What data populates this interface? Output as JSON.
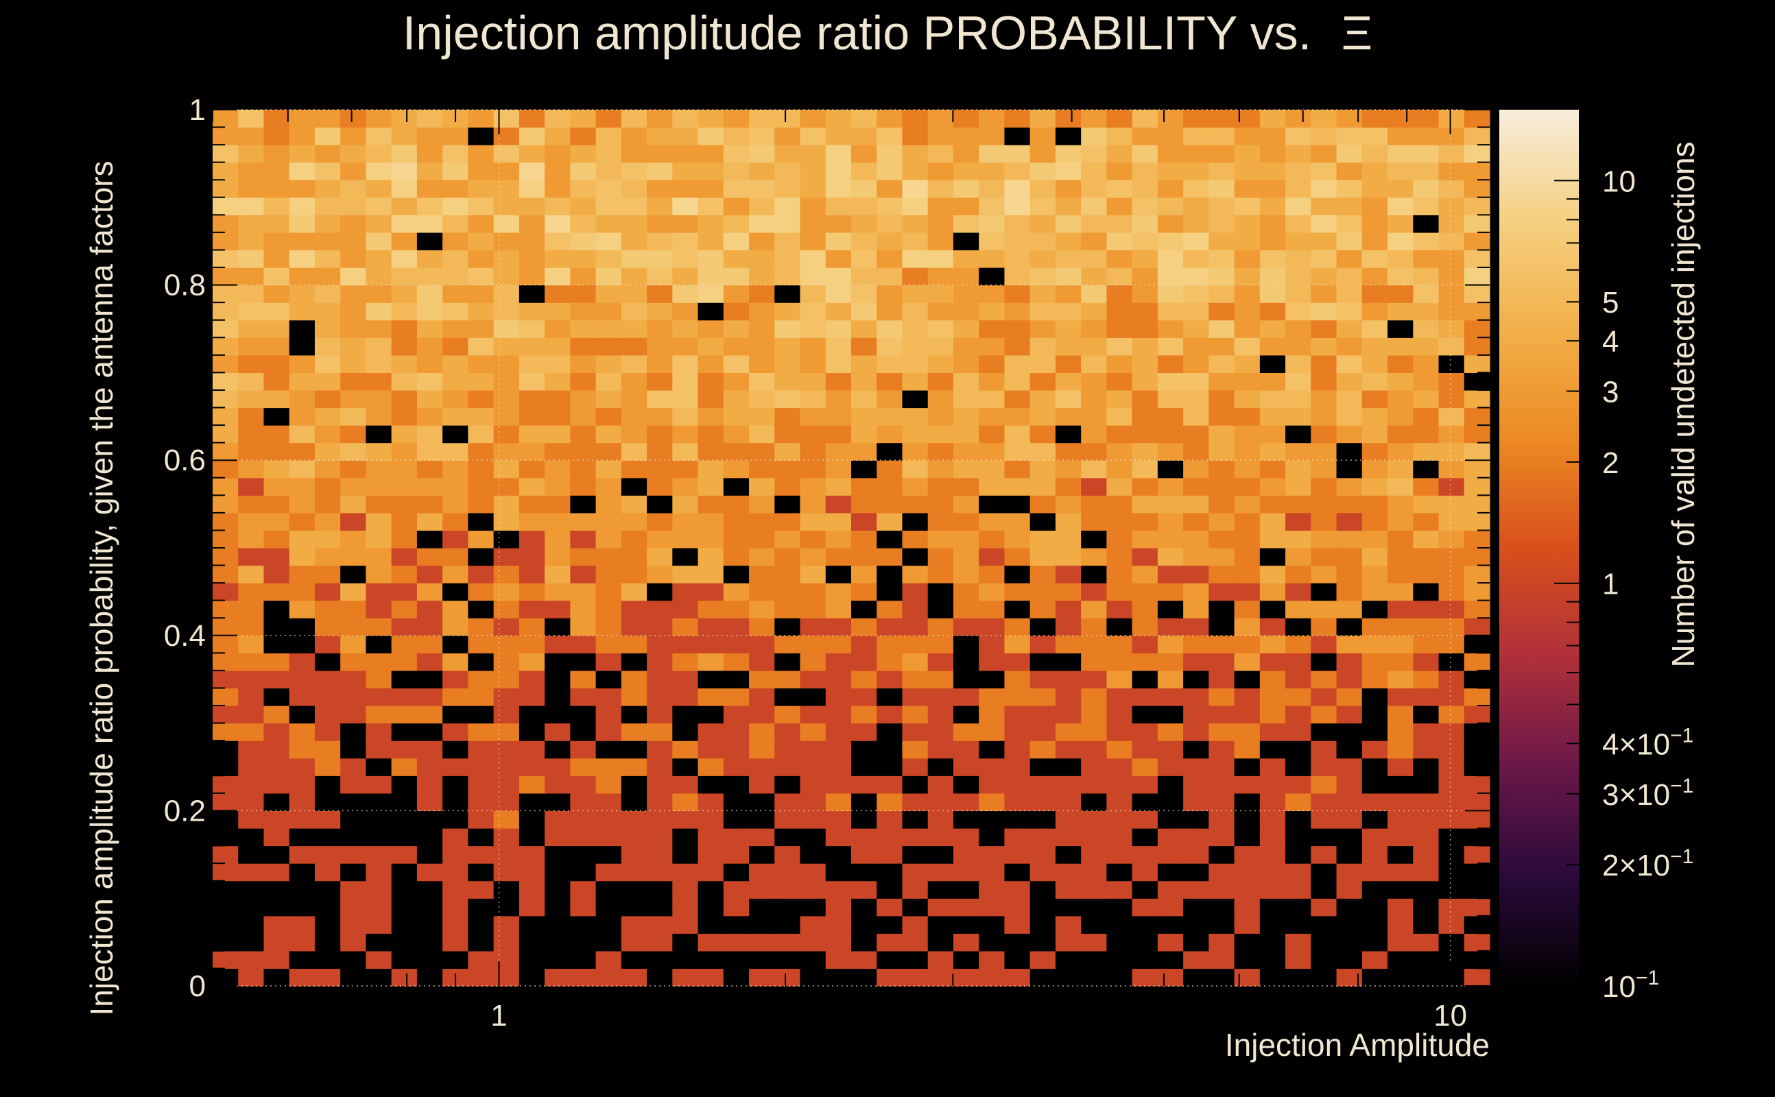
{
  "chart_data": {
    "type": "heatmap",
    "title_text": "Injection amplitude ratio PROBABILITY vs.",
    "title_symbol": "Ξ",
    "xlabel": "Injection Amplitude",
    "ylabel": "Injection amplitude ratio probability, given the antenna factors",
    "zlabel": "Number of valid undetected injections",
    "x_scale": "log",
    "x_range": [
      0.5,
      11
    ],
    "y_range": [
      0,
      1
    ],
    "z_scale": "log",
    "z_range": [
      0.1,
      15
    ],
    "grid": true,
    "x_bins": 50,
    "y_bins": 50,
    "x_ticks": [
      {
        "value": 1,
        "label": "1"
      },
      {
        "value": 10,
        "label": "10"
      }
    ],
    "y_ticks": [
      {
        "value": 0,
        "label": "0"
      },
      {
        "value": 0.2,
        "label": "0.2"
      },
      {
        "value": 0.4,
        "label": "0.4"
      },
      {
        "value": 0.6,
        "label": "0.6"
      },
      {
        "value": 0.8,
        "label": "0.8"
      },
      {
        "value": 1,
        "label": "1"
      }
    ],
    "z_ticks": [
      {
        "value": 10,
        "base": "10",
        "exp": ""
      },
      {
        "value": 5,
        "base": "5",
        "exp": ""
      },
      {
        "value": 4,
        "base": "4",
        "exp": ""
      },
      {
        "value": 3,
        "base": "3",
        "exp": ""
      },
      {
        "value": 2,
        "base": "2",
        "exp": ""
      },
      {
        "value": 1,
        "base": "1",
        "exp": ""
      },
      {
        "value": 0.4,
        "base": "4×10",
        "exp": "−1"
      },
      {
        "value": 0.3,
        "base": "3×10",
        "exp": "−1"
      },
      {
        "value": 0.2,
        "base": "2×10",
        "exp": "−1"
      },
      {
        "value": 0.1,
        "base": "10",
        "exp": "−1"
      }
    ],
    "colormap": [
      "#000000",
      "#2a0a3a",
      "#6a1848",
      "#b0303a",
      "#d8501c",
      "#ec8a22",
      "#f2b04a",
      "#f5d080",
      "#f8eedc"
    ],
    "empty_color": "#000000",
    "density_profile": {
      "rows_from_bottom_mean_counts": [
        0.5,
        0.5,
        0.5,
        0.5,
        0.6,
        0.7,
        0.7,
        0.8,
        0.8,
        0.9,
        1.0,
        1.0,
        1.1,
        1.1,
        1.2,
        1.3,
        1.4,
        1.5,
        1.6,
        1.7,
        1.8,
        1.9,
        2.0,
        2.1,
        2.2,
        2.3,
        2.4,
        2.5,
        2.6,
        2.8,
        2.9,
        3.0,
        3.1,
        3.2,
        3.3,
        3.4,
        3.6,
        3.8,
        4.0,
        4.2,
        4.4,
        4.6,
        4.8,
        5.0,
        5.0,
        5.0,
        5.0,
        4.6,
        4.0,
        3.2
      ]
    }
  }
}
